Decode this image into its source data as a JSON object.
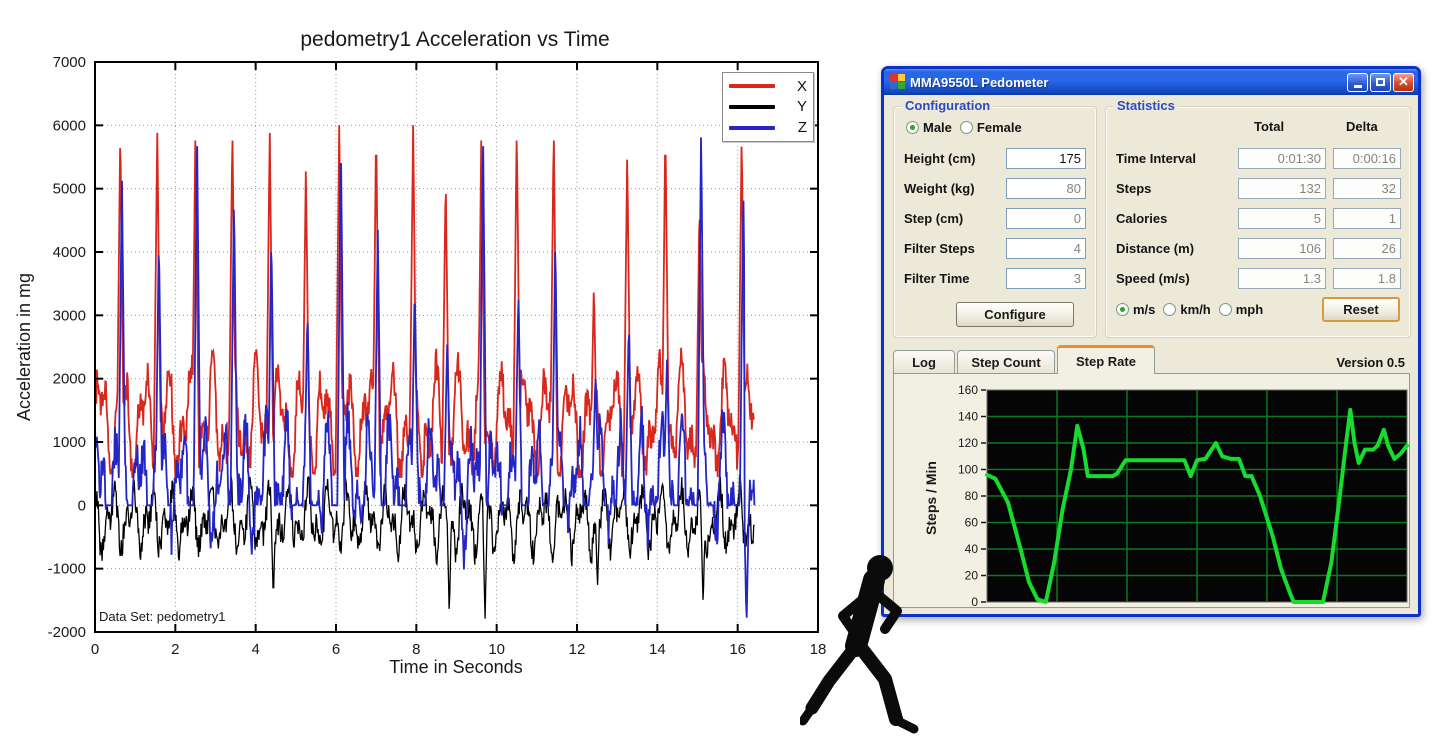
{
  "chart_data": [
    {
      "type": "line",
      "title": "pedometry1 Acceleration vs Time",
      "xlabel": "Time in Seconds",
      "ylabel": "Acceleration in mg",
      "annotation": "Data Set: pedometry1",
      "xlim": [
        0,
        18
      ],
      "ylim": [
        -2000,
        7000
      ],
      "xticks": [
        0,
        2,
        4,
        6,
        8,
        10,
        12,
        14,
        16,
        18
      ],
      "yticks": [
        -2000,
        -1000,
        0,
        1000,
        2000,
        3000,
        4000,
        5000,
        6000,
        7000
      ],
      "grid": true,
      "legend_position": "top-right",
      "series": [
        {
          "name": "X",
          "color": "#d8281e"
        },
        {
          "name": "Y",
          "color": "#000000"
        },
        {
          "name": "Z",
          "color": "#2326c4"
        }
      ],
      "signal_end": 16.42,
      "clip_max": 6000,
      "step_events": [
        {
          "t": 0.63,
          "x_peak": 6000,
          "z_peak": 5250
        },
        {
          "t": 1.55,
          "x_peak": 6000,
          "z_peak": 4250
        },
        {
          "t": 2.5,
          "x_peak": 6000,
          "z_peak": 5950
        },
        {
          "t": 3.42,
          "x_peak": 6000,
          "z_peak": 4900
        },
        {
          "t": 4.35,
          "x_peak": 6000,
          "z_peak": 4300,
          "y_dip": -1500
        },
        {
          "t": 5.25,
          "x_peak": 5380,
          "z_peak": 3100
        },
        {
          "t": 6.08,
          "x_peak": 6000,
          "z_peak": 5950
        },
        {
          "t": 7.0,
          "x_peak": 6000,
          "z_peak": 4350
        },
        {
          "t": 7.92,
          "x_peak": 6000,
          "z_peak": 3500
        },
        {
          "t": 8.73,
          "x_peak": 5230,
          "z_peak": 2600,
          "y_dip": -1750
        },
        {
          "t": 9.62,
          "x_peak": 6000,
          "z_peak": 5950,
          "y_dip": -1850
        },
        {
          "t": 10.5,
          "x_peak": 6000,
          "z_peak": 3400
        },
        {
          "t": 11.42,
          "x_peak": 6000,
          "z_peak": 4200
        },
        {
          "t": 12.42,
          "x_peak": 3500,
          "z_peak": 2100,
          "y_dip": -1300
        },
        {
          "t": 13.25,
          "x_peak": 5570,
          "z_peak": 2900
        },
        {
          "t": 14.2,
          "x_peak": 6000,
          "z_peak": 2300
        },
        {
          "t": 15.05,
          "x_peak": 4800,
          "z_peak": 5950,
          "y_dip": -1600
        },
        {
          "t": 16.1,
          "x_peak": 5900,
          "z_peak": 5050,
          "z_dip": -1900
        }
      ]
    },
    {
      "type": "line",
      "ylabel": "Steps / Min",
      "ylim": [
        0,
        160
      ],
      "yticks": [
        0,
        20,
        40,
        60,
        80,
        100,
        120,
        140,
        160
      ],
      "grid": true,
      "bg_color": "#050505",
      "grid_color": "#0a7a1e",
      "line_color": "#17dc2e",
      "points": [
        [
          0,
          96
        ],
        [
          2,
          93
        ],
        [
          5,
          75
        ],
        [
          8,
          40
        ],
        [
          10,
          15
        ],
        [
          12,
          2
        ],
        [
          14,
          0
        ],
        [
          16,
          30
        ],
        [
          18,
          70
        ],
        [
          20,
          100
        ],
        [
          21.5,
          133
        ],
        [
          23,
          115
        ],
        [
          24,
          95
        ],
        [
          30,
          95
        ],
        [
          31,
          97
        ],
        [
          33,
          107
        ],
        [
          47,
          107
        ],
        [
          48.5,
          95
        ],
        [
          50,
          107
        ],
        [
          52,
          108
        ],
        [
          54.5,
          120
        ],
        [
          56,
          110
        ],
        [
          58,
          108
        ],
        [
          60,
          108
        ],
        [
          61.5,
          95
        ],
        [
          63,
          95
        ],
        [
          65,
          80
        ],
        [
          68,
          50
        ],
        [
          70,
          25
        ],
        [
          72,
          8
        ],
        [
          73,
          0
        ],
        [
          80,
          0
        ],
        [
          82,
          30
        ],
        [
          84,
          80
        ],
        [
          85.5,
          120
        ],
        [
          86.5,
          145
        ],
        [
          87.5,
          120
        ],
        [
          88.5,
          105
        ],
        [
          90,
          115
        ],
        [
          92,
          115
        ],
        [
          93,
          118
        ],
        [
          94.5,
          130
        ],
        [
          95.5,
          118
        ],
        [
          97,
          108
        ],
        [
          98.5,
          112
        ],
        [
          100,
          118
        ]
      ]
    }
  ],
  "dialog": {
    "title": "MMA9550L Pedometer",
    "config": {
      "title": "Configuration",
      "gender_options": [
        {
          "label": "Male",
          "selected": true
        },
        {
          "label": "Female",
          "selected": false
        }
      ],
      "fields": [
        {
          "label": "Height (cm)",
          "value": "175"
        },
        {
          "label": "Weight (kg)",
          "value": "80"
        },
        {
          "label": "Step (cm)",
          "value": "0"
        },
        {
          "label": "Filter Steps",
          "value": "4"
        },
        {
          "label": "Filter Time",
          "value": "3"
        }
      ],
      "configure_label": "Configure"
    },
    "stats": {
      "title": "Statistics",
      "col_total": "Total",
      "col_delta": "Delta",
      "rows": [
        {
          "label": "Time Interval",
          "total": "0:01:30",
          "delta": "0:00:16"
        },
        {
          "label": "Steps",
          "total": "132",
          "delta": "32"
        },
        {
          "label": "Calories",
          "total": "5",
          "delta": "1"
        },
        {
          "label": "Distance (m)",
          "total": "106",
          "delta": "26"
        },
        {
          "label": "Speed (m/s)",
          "total": "1.3",
          "delta": "1.8"
        }
      ],
      "unit_options": [
        {
          "label": "m/s",
          "selected": true
        },
        {
          "label": "km/h",
          "selected": false
        },
        {
          "label": "mph",
          "selected": false
        }
      ],
      "reset_label": "Reset"
    },
    "tabs": [
      {
        "label": "Log",
        "active": false
      },
      {
        "label": "Step Count",
        "active": false
      },
      {
        "label": "Step Rate",
        "active": true
      }
    ],
    "version": "Version 0.5"
  },
  "colors": {
    "xp_title_blue": "#2a66e4",
    "xp_client": "#ece9d8",
    "group_title_blue": "#2b4bbf",
    "tab_accent_orange": "#e8912c",
    "reset_focus_gold": "#d89a3e",
    "rate_line_green": "#17dc2e"
  }
}
